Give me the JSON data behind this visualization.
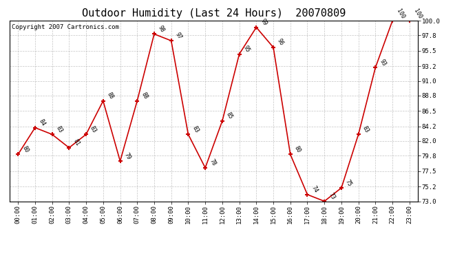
{
  "title": "Outdoor Humidity (Last 24 Hours)  20070809",
  "copyright": "Copyright 2007 Cartronics.com",
  "hours": [
    "00:00",
    "01:00",
    "02:00",
    "03:00",
    "04:00",
    "05:00",
    "06:00",
    "07:00",
    "08:00",
    "09:00",
    "10:00",
    "11:00",
    "12:00",
    "13:00",
    "14:00",
    "15:00",
    "16:00",
    "17:00",
    "18:00",
    "19:00",
    "20:00",
    "21:00",
    "22:00",
    "23:00"
  ],
  "values": [
    80,
    84,
    83,
    81,
    83,
    88,
    79,
    88,
    98,
    97,
    83,
    78,
    85,
    95,
    99,
    96,
    80,
    74,
    73,
    75,
    83,
    93,
    100,
    100
  ],
  "line_color": "#cc0000",
  "marker_color": "#cc0000",
  "bg_color": "#ffffff",
  "grid_color": "#aaaaaa",
  "ylim_min": 73.0,
  "ylim_max": 100.0,
  "yticks": [
    73.0,
    75.2,
    77.5,
    79.8,
    82.0,
    84.2,
    86.5,
    88.8,
    91.0,
    93.2,
    95.5,
    97.8,
    100.0
  ],
  "title_fontsize": 11,
  "copyright_fontsize": 6.5,
  "label_fontsize": 6,
  "tick_fontsize": 6.5
}
